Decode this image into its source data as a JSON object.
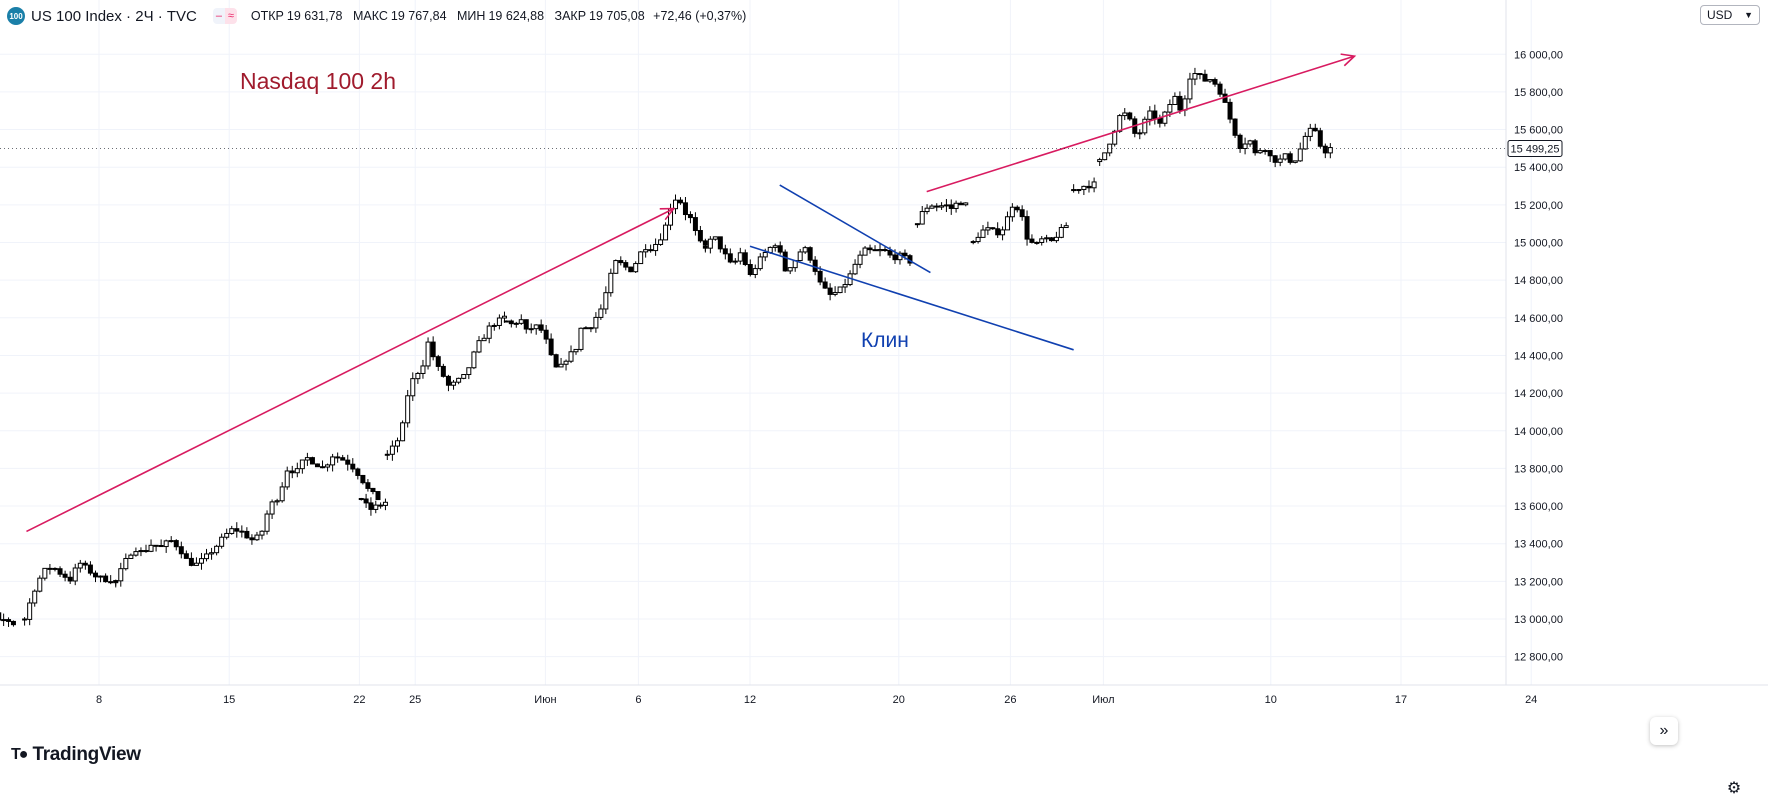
{
  "header": {
    "symbol_logo": "100",
    "symbol_title": "US 100 Index · 2Ч · TVC",
    "badge_icons": [
      "close-icon",
      "approx-icon"
    ],
    "ohlc": {
      "open_label": "ОТКР",
      "open_value": "19 631,78",
      "high_label": "МАКС",
      "high_value": "19 767,84",
      "low_label": "МИН",
      "low_value": "19 624,88",
      "close_label": "ЗАКР",
      "close_value": "19 705,08",
      "change": "+72,46 (+0,37%)"
    }
  },
  "currency_select": {
    "value": "USD"
  },
  "branding": {
    "logo_text": "TradingView"
  },
  "chart_data": {
    "type": "candlestick",
    "annotations": {
      "title": "Nasdaq 100 2h",
      "wedge_label": "Клин"
    },
    "colors": {
      "title": "#a01b2d",
      "wedge": "#1040b0",
      "arrows": "#d81b60",
      "candle": "#000000"
    },
    "last_price": {
      "value": 15499.25,
      "label": "15 499,25"
    },
    "y_axis": {
      "min": 12700,
      "max": 16150,
      "ticks": [
        12800,
        13000,
        13200,
        13400,
        13600,
        13800,
        14000,
        14200,
        14400,
        14600,
        14800,
        15000,
        15200,
        15400,
        15600,
        15800,
        16000
      ],
      "tick_labels": [
        "12 800,00",
        "13 000,00",
        "13 200,00",
        "13 400,00",
        "13 600,00",
        "13 800,00",
        "14 000,00",
        "14 200,00",
        "14 400,00",
        "14 600,00",
        "14 800,00",
        "15 000,00",
        "15 200,00",
        "15 400,00",
        "15 600,00",
        "15 800,00",
        "16 000,00"
      ]
    },
    "x_axis": {
      "ticks": [
        {
          "label": "8",
          "day": 8
        },
        {
          "label": "15",
          "day": 15
        },
        {
          "label": "22",
          "day": 22
        },
        {
          "label": "25",
          "day": 25
        },
        {
          "label": "Июн",
          "day": 32
        },
        {
          "label": "6",
          "day": 37
        },
        {
          "label": "12",
          "day": 43
        },
        {
          "label": "20",
          "day": 51
        },
        {
          "label": "26",
          "day": 57
        },
        {
          "label": "Июл",
          "day": 62
        },
        {
          "label": "10",
          "day": 71
        },
        {
          "label": "17",
          "day": 78
        },
        {
          "label": "24",
          "day": 85
        }
      ]
    },
    "grid": true,
    "trendlines": [
      {
        "name": "arrow-up-1",
        "from": {
          "day": 4.1,
          "value": 13465
        },
        "to": {
          "day": 38.9,
          "value": 15180
        },
        "arrow": true
      },
      {
        "name": "arrow-up-2",
        "from": {
          "day": 52.5,
          "value": 15270
        },
        "to": {
          "day": 75.5,
          "value": 15990
        },
        "arrow": true
      },
      {
        "name": "wedge-upper",
        "from": {
          "day": 44.6,
          "value": 15305
        },
        "to": {
          "day": 52.7,
          "value": 14840
        }
      },
      {
        "name": "wedge-lower",
        "from": {
          "day": 43.0,
          "value": 14980
        },
        "to": {
          "day": 60.4,
          "value": 14430
        }
      }
    ],
    "segments": [
      {
        "start_day": 0.5,
        "end_day": 3.4,
        "start_value": 13080,
        "path": [
          13080,
          13140,
          13100,
          13220,
          13060,
          12980,
          13000,
          12975
        ]
      },
      {
        "start_day": 4.0,
        "end_day": 8.9,
        "start_value": 13000,
        "path": [
          13000,
          13150,
          13250,
          13280,
          13240,
          13210,
          13300,
          13260,
          13220,
          13210,
          13200
        ]
      },
      {
        "start_day": 8.9,
        "end_day": 23.0,
        "start_value": 13200,
        "path": [
          13200,
          13300,
          13380,
          13350,
          13400,
          13380,
          13420,
          13380,
          13300,
          13290,
          13330,
          13380,
          13440,
          13480,
          13460,
          13420,
          13440,
          13600,
          13650,
          13800,
          13780,
          13860,
          13830,
          13800,
          13870,
          13850,
          13820,
          13760,
          13680,
          13640
        ]
      },
      {
        "start_day": 22.1,
        "end_day": 23.4,
        "start_value": 13640,
        "path": [
          13640,
          13580,
          13600,
          13620
        ]
      },
      {
        "start_day": 23.5,
        "end_day": 29.8,
        "start_value": 13870,
        "path": [
          13870,
          13920,
          13980,
          14200,
          14300,
          14330,
          14480,
          14350,
          14300,
          14230,
          14260,
          14280,
          14350,
          14450,
          14500,
          14560,
          14580,
          14600
        ]
      },
      {
        "start_day": 29.9,
        "end_day": 40.6,
        "start_value": 14580,
        "path": [
          14580,
          14560,
          14600,
          14520,
          14560,
          14540,
          14460,
          14330,
          14340,
          14400,
          14420,
          14560,
          14540,
          14600,
          14660,
          14800,
          14900,
          14880,
          14850,
          14900,
          14980,
          14970,
          15000,
          15060,
          15200,
          15250,
          15160,
          15120,
          15000,
          14980
        ]
      },
      {
        "start_day": 40.6,
        "end_day": 51.6,
        "start_value": 14980,
        "path": [
          14980,
          15030,
          14950,
          14870,
          14950,
          14820,
          14900,
          14960,
          15000,
          14850,
          14900,
          14980,
          14900,
          14770,
          14720,
          14740,
          14800,
          14900,
          14960,
          14950,
          14960,
          14920,
          14930,
          14900
        ]
      },
      {
        "start_day": 52.0,
        "end_day": 54.6,
        "start_value": 15100,
        "path": [
          15100,
          15180,
          15200,
          15190,
          15200,
          15180,
          15220,
          15200
        ]
      },
      {
        "start_day": 55.0,
        "end_day": 60.0,
        "start_value": 15000,
        "path": [
          15000,
          15060,
          15070,
          15050,
          15080,
          15200,
          15180,
          15020,
          14980,
          15020,
          15000,
          15050,
          15090
        ]
      },
      {
        "start_day": 60.4,
        "end_day": 61.5,
        "start_value": 15280,
        "path": [
          15280,
          15300,
          15310
        ]
      },
      {
        "start_day": 61.8,
        "end_day": 74.2,
        "start_value": 15430,
        "path": [
          15430,
          15500,
          15600,
          15700,
          15650,
          15550,
          15640,
          15700,
          15620,
          15700,
          15780,
          15690,
          15880,
          15900,
          15860,
          15870,
          15820,
          15720,
          15600,
          15500,
          15560,
          15460,
          15520,
          15450,
          15430,
          15460,
          15420,
          15500,
          15600,
          15580,
          15480,
          15500
        ]
      }
    ]
  }
}
